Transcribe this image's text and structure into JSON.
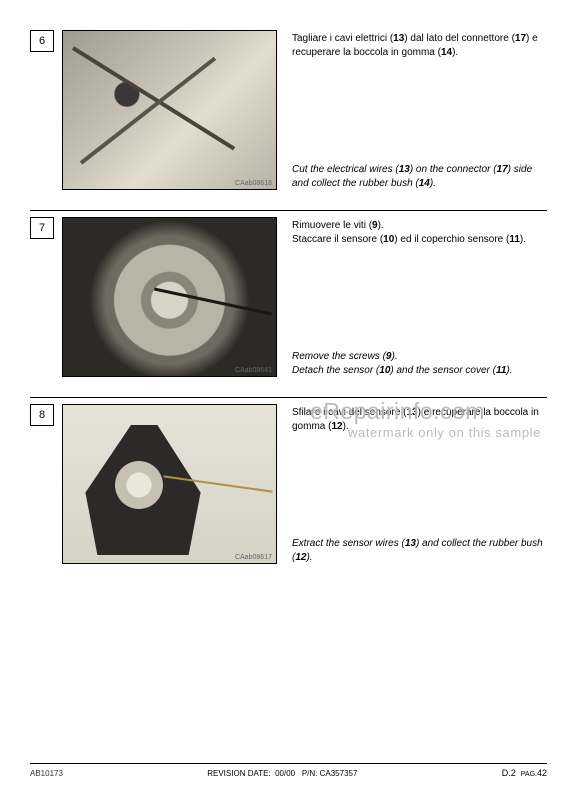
{
  "steps": [
    {
      "num": "6",
      "caption": "CAab08618",
      "top_html": "Tagliare i cavi elettrici (<b>13</b>) dal lato del connettore (<b>17</b>) e recuperare la boccola in gomma (<b>14</b>).",
      "bot_html": "Cut the electrical wires (<b>13</b>) on the connector (<b>17</b>) side and collect the rubber bush (<b>14</b>)."
    },
    {
      "num": "7",
      "caption": "CAab08641",
      "top_html": "Rimuovere le viti (<b>9</b>).<br>Staccare il sensore (<b>10</b>) ed il coperchio sensore (<b>11</b>).",
      "bot_html": "Remove the screws (<b>9</b>).<br>Detach the sensor (<b>10</b>) and the sensor cover (<b>11</b>)."
    },
    {
      "num": "8",
      "caption": "CAab08617",
      "top_html": "Sfilare i cavi del sensore (<b>13</b>) e recuperare la boccola in gomma (<b>12</b>).",
      "bot_html": "Extract the sensor wires (<b>13</b>) and collect the rubber bush (<b>12</b>)."
    }
  ],
  "footer": {
    "left": "AB10173",
    "center_label": "REVISION DATE:",
    "center_rev": "00/00",
    "center_pin_label": "P/N:",
    "center_pin": "CA357357",
    "right_section": "D.2",
    "right_pag_label": "PAG.",
    "right_page": "42"
  },
  "watermark": {
    "line1": "eRepairinfo.com",
    "line2": "watermark only on this sample"
  }
}
